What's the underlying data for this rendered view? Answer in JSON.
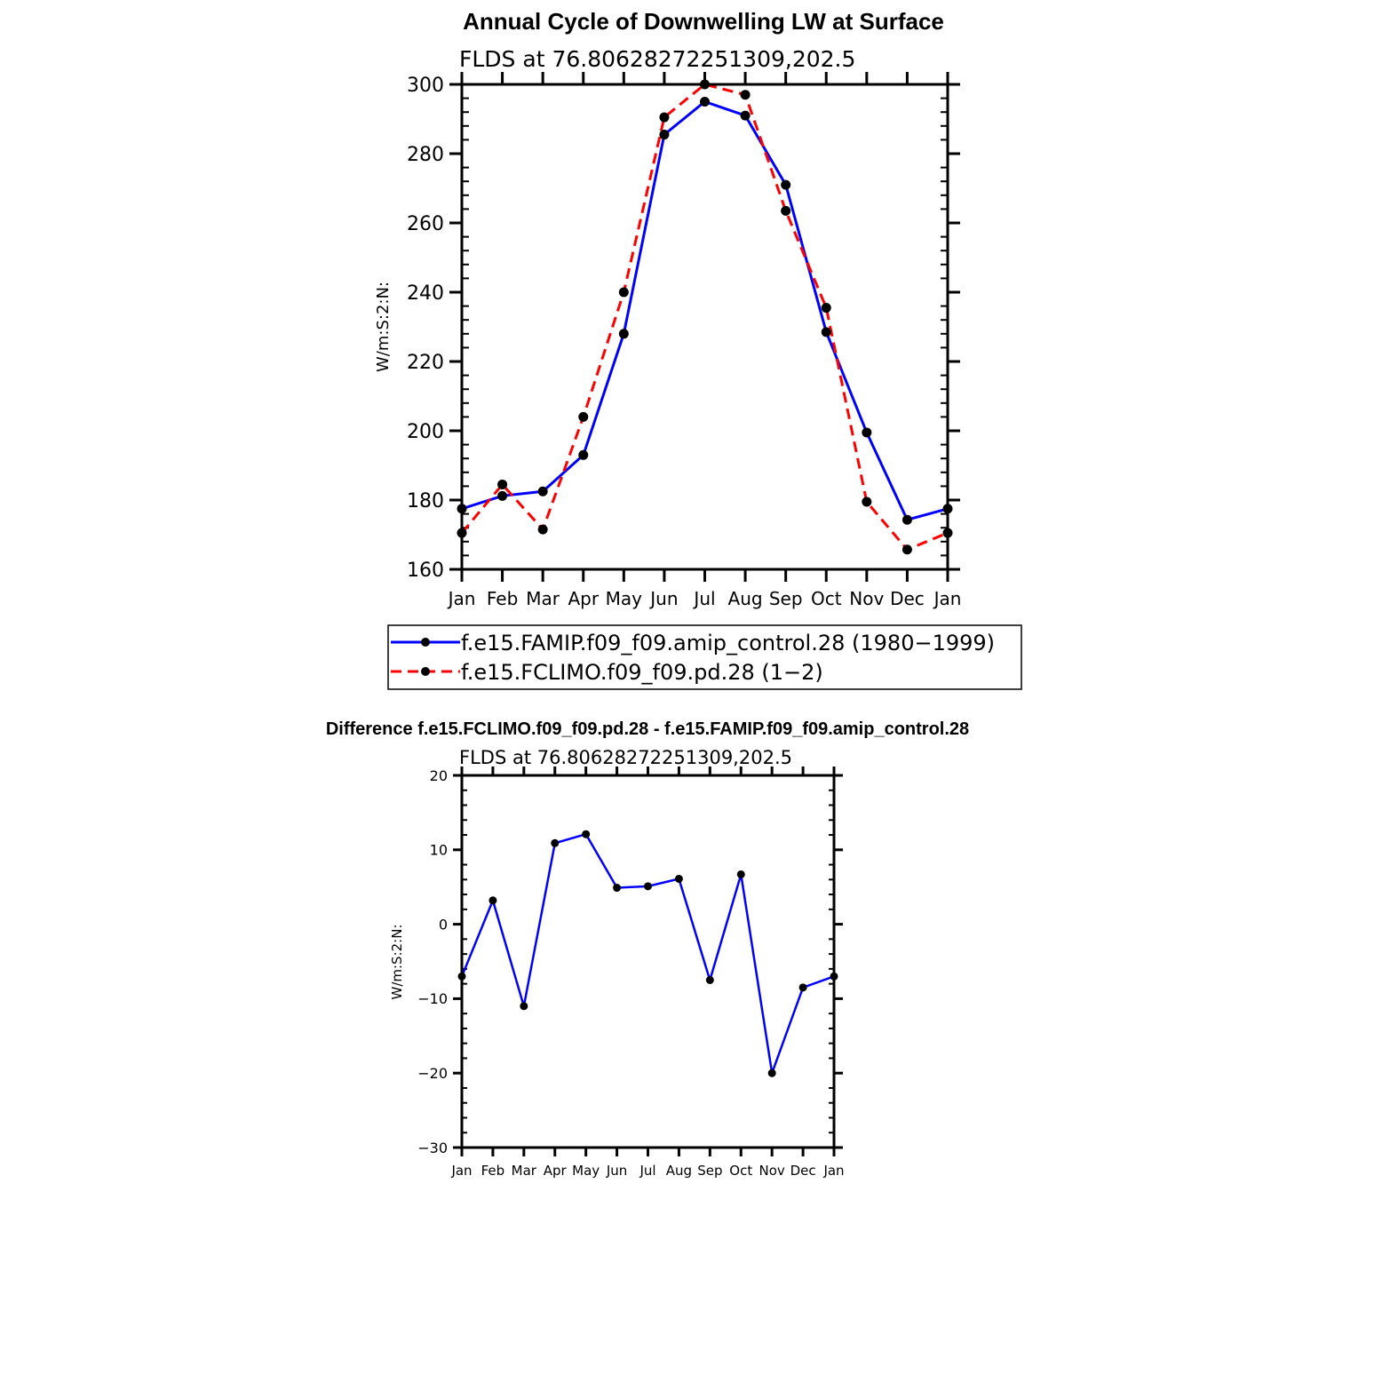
{
  "chart_data": [
    {
      "type": "line",
      "title": "Annual Cycle of Downwelling LW at Surface",
      "subtitle": "FLDS at 76.80628272251309,202.5",
      "ylabel": "W/m:S:2:N:",
      "categories": [
        "Jan",
        "Feb",
        "Mar",
        "Apr",
        "May",
        "Jun",
        "Jul",
        "Aug",
        "Sep",
        "Oct",
        "Nov",
        "Dec",
        "Jan"
      ],
      "ylim": [
        160,
        300
      ],
      "yticks": [
        "160",
        "180",
        "200",
        "220",
        "240",
        "260",
        "280",
        "300"
      ],
      "series": [
        {
          "name": "f.e15.FAMIP.f09_f09.amip_control.28 (1980−1999)",
          "color": "#0000ff",
          "dash": "solid",
          "values": [
            177.5,
            181.2,
            182.5,
            193,
            228,
            285.5,
            295,
            291,
            271,
            228.5,
            199.5,
            174.3,
            177.5
          ]
        },
        {
          "name": "f.e15.FCLIMO.f09_f09.pd.28 (1−2)",
          "color": "#ff0000",
          "dash": "dashed",
          "values": [
            170.5,
            184.5,
            171.5,
            204,
            240,
            290.5,
            300,
            297,
            263.5,
            235.5,
            179.5,
            165.7,
            170.5
          ]
        }
      ],
      "legend": "bottom"
    },
    {
      "type": "line",
      "title": "Difference f.e15.FCLIMO.f09_f09.pd.28 - f.e15.FAMIP.f09_f09.amip_control.28",
      "subtitle": "FLDS at 76.80628272251309,202.5",
      "ylabel": "W/m:S:2:N:",
      "categories": [
        "Jan",
        "Feb",
        "Mar",
        "Apr",
        "May",
        "Jun",
        "Jul",
        "Aug",
        "Sep",
        "Oct",
        "Nov",
        "Dec",
        "Jan"
      ],
      "ylim": [
        -30,
        20
      ],
      "yticks": [
        "−30",
        "−20",
        "−10",
        "0",
        "10",
        "20"
      ],
      "series": [
        {
          "color": "#0000ff",
          "dash": "solid",
          "values": [
            -7,
            3.2,
            -11,
            10.9,
            12.1,
            4.9,
            5.1,
            6.1,
            -7.5,
            6.7,
            -20,
            -8.5,
            -7
          ]
        }
      ]
    }
  ]
}
